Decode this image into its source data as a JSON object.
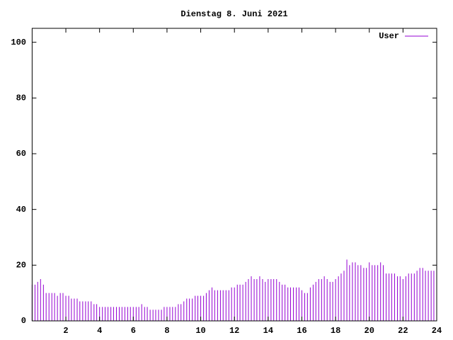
{
  "chart_data": {
    "type": "impulse",
    "title": "Dienstag 8. Juni 2021",
    "xlim": [
      0,
      24
    ],
    "xticks": [
      2,
      4,
      6,
      8,
      10,
      12,
      14,
      16,
      18,
      20,
      22,
      24
    ],
    "ylim": [
      0,
      105
    ],
    "yticks": [
      0,
      20,
      40,
      60,
      80,
      100
    ],
    "legend": "top-right",
    "x": [
      0,
      0.17,
      0.33,
      0.5,
      0.67,
      0.83,
      1,
      1.17,
      1.33,
      1.5,
      1.67,
      1.83,
      2,
      2.17,
      2.33,
      2.5,
      2.67,
      2.83,
      3,
      3.17,
      3.33,
      3.5,
      3.67,
      3.83,
      4,
      4.17,
      4.33,
      4.5,
      4.67,
      4.83,
      5,
      5.17,
      5.33,
      5.5,
      5.67,
      5.83,
      6,
      6.17,
      6.33,
      6.5,
      6.67,
      6.83,
      7,
      7.17,
      7.33,
      7.5,
      7.67,
      7.83,
      8,
      8.17,
      8.33,
      8.5,
      8.67,
      8.83,
      9,
      9.17,
      9.33,
      9.5,
      9.67,
      9.83,
      10,
      10.17,
      10.33,
      10.5,
      10.67,
      10.83,
      11,
      11.17,
      11.33,
      11.5,
      11.67,
      11.83,
      12,
      12.17,
      12.33,
      12.5,
      12.67,
      12.83,
      13,
      13.17,
      13.33,
      13.5,
      13.67,
      13.83,
      14,
      14.17,
      14.33,
      14.5,
      14.67,
      14.83,
      15,
      15.17,
      15.33,
      15.5,
      15.67,
      15.83,
      16,
      16.17,
      16.33,
      16.5,
      16.67,
      16.83,
      17,
      17.17,
      17.33,
      17.5,
      17.67,
      17.83,
      18,
      18.17,
      18.33,
      18.5,
      18.67,
      18.83,
      19,
      19.17,
      19.33,
      19.5,
      19.67,
      19.83,
      20,
      20.17,
      20.33,
      20.5,
      20.67,
      20.83,
      21,
      21.17,
      21.33,
      21.5,
      21.67,
      21.83,
      22,
      22.17,
      22.33,
      22.5,
      22.67,
      22.83,
      23,
      23.17,
      23.33,
      23.5,
      23.67,
      23.83
    ],
    "series": [
      {
        "name": "User",
        "color": "#9400d3",
        "values": [
          13,
          13,
          14,
          15,
          13,
          10,
          10,
          10,
          10,
          9,
          10,
          10,
          9,
          9,
          8,
          8,
          8,
          7,
          7,
          7,
          7,
          7,
          6,
          6,
          5,
          5,
          5,
          5,
          5,
          5,
          5,
          5,
          5,
          5,
          5,
          5,
          5,
          5,
          5,
          6,
          5,
          5,
          4,
          4,
          4,
          4,
          4,
          5,
          5,
          5,
          5,
          5,
          6,
          6,
          7,
          8,
          8,
          8,
          9,
          9,
          9,
          9,
          10,
          11,
          12,
          11,
          11,
          11,
          11,
          11,
          11,
          12,
          12,
          13,
          13,
          13,
          14,
          15,
          16,
          15,
          15,
          16,
          15,
          14,
          15,
          15,
          15,
          15,
          14,
          13,
          13,
          12,
          12,
          12,
          12,
          12,
          11,
          10,
          10,
          12,
          13,
          14,
          15,
          15,
          16,
          15,
          14,
          14,
          15,
          16,
          17,
          18,
          22,
          20,
          21,
          21,
          20,
          20,
          19,
          19,
          21,
          20,
          20,
          20,
          21,
          20,
          17,
          17,
          17,
          17,
          16,
          16,
          15,
          16,
          17,
          17,
          17,
          18,
          19,
          19,
          18,
          18,
          18,
          18
        ]
      }
    ]
  }
}
